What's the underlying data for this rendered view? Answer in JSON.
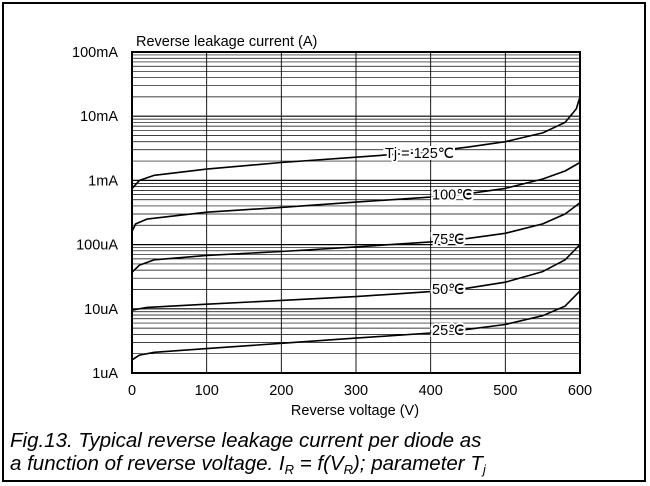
{
  "chart_data": {
    "type": "line",
    "title": "Reverse leakage current (A)",
    "xlabel": "Reverse voltage (V)",
    "ylabel": "Reverse leakage current (A)",
    "x_scale": "linear",
    "y_scale": "log",
    "xlim": [
      0,
      600
    ],
    "ylim": [
      1e-06,
      0.1
    ],
    "x_ticks": [
      0,
      100,
      200,
      300,
      400,
      500,
      600
    ],
    "x_tick_labels": [
      "0",
      "100",
      "200",
      "300",
      "400",
      "500",
      "600"
    ],
    "y_ticks": [
      1e-06,
      1e-05,
      0.0001,
      0.001,
      0.01,
      0.1
    ],
    "y_tick_labels": [
      "1uA",
      "10uA",
      "100uA",
      "1mA",
      "10mA",
      "100mA"
    ],
    "grid": true,
    "series": [
      {
        "name": "Tj = 125℃",
        "x": [
          0,
          10,
          30,
          100,
          200,
          300,
          400,
          450,
          500,
          550,
          580,
          595,
          600
        ],
        "y": [
          0.00075,
          0.001,
          0.0012,
          0.0015,
          0.0019,
          0.0023,
          0.0028,
          0.0033,
          0.004,
          0.0055,
          0.008,
          0.013,
          0.02
        ]
      },
      {
        "name": "100℃",
        "x": [
          0,
          5,
          20,
          100,
          200,
          300,
          400,
          450,
          500,
          550,
          580,
          600
        ],
        "y": [
          0.00016,
          0.00021,
          0.00025,
          0.00032,
          0.00038,
          0.00046,
          0.00055,
          0.00062,
          0.00075,
          0.00105,
          0.0014,
          0.0019
        ]
      },
      {
        "name": "75℃",
        "x": [
          0,
          10,
          30,
          100,
          200,
          300,
          400,
          450,
          500,
          550,
          580,
          600
        ],
        "y": [
          3.7e-05,
          4.8e-05,
          5.8e-05,
          6.8e-05,
          7.8e-05,
          9.2e-05,
          0.00011,
          0.000125,
          0.00015,
          0.00021,
          0.0003,
          0.00045
        ]
      },
      {
        "name": "50℃",
        "x": [
          0,
          20,
          100,
          200,
          300,
          400,
          450,
          500,
          550,
          580,
          600
        ],
        "y": [
          9.5e-06,
          1.05e-05,
          1.18e-05,
          1.35e-05,
          1.55e-05,
          1.85e-05,
          2.1e-05,
          2.6e-05,
          3.8e-05,
          5.8e-05,
          0.0001
        ]
      },
      {
        "name": "25℃",
        "x": [
          0,
          10,
          30,
          100,
          200,
          300,
          400,
          450,
          500,
          550,
          580,
          600
        ],
        "y": [
          1.6e-06,
          1.9e-06,
          2.1e-06,
          2.4e-06,
          2.9e-06,
          3.5e-06,
          4.2e-06,
          4.8e-06,
          5.7e-06,
          7.8e-06,
          1.1e-05,
          1.9e-05
        ]
      }
    ]
  },
  "caption": {
    "line1": "Fig.13.  Typical reverse leakage current per diode as",
    "line2_prefix": "a function of reverse voltage. I",
    "line2_sub1": "R",
    "line2_mid": " = f(V",
    "line2_sub2": "R",
    "line2_suffix": "); parameter T",
    "line2_sub3": "j"
  }
}
